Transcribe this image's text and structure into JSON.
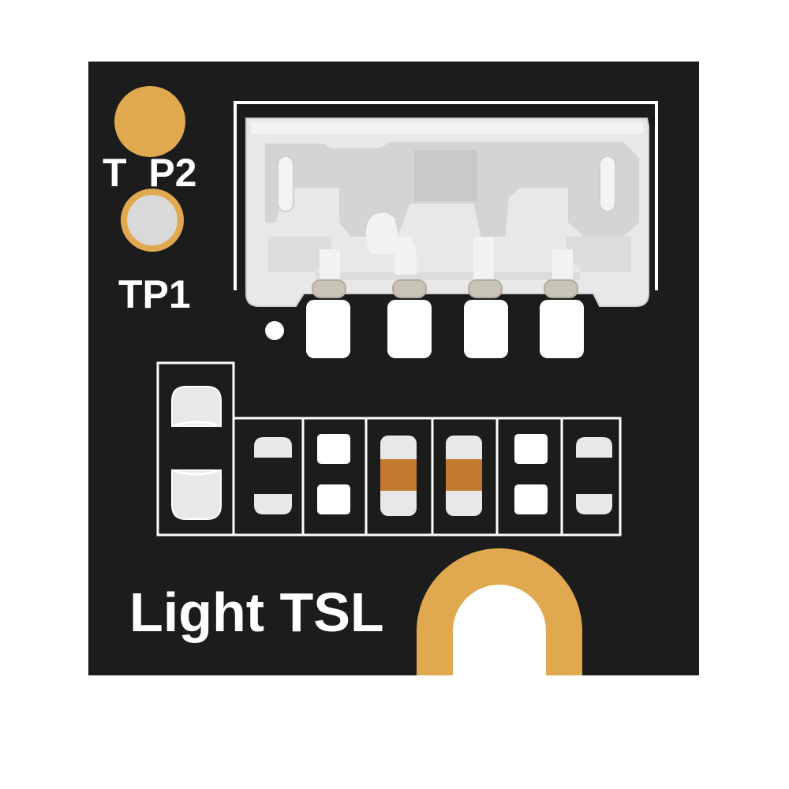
{
  "board": {
    "colors": {
      "board": "#1c1c1c",
      "silkscreen": "#ffffff",
      "gold_pad": "#e1a94f",
      "connector_body": "#e6e6e6",
      "connector_shade": "#cfcfcf",
      "pin_tip": "#c9c4b8",
      "smd_pad": "#e8e8e8",
      "capacitor": "#c27a2e"
    }
  },
  "labels": {
    "tp2": "T  P2",
    "tp1": "TP1",
    "title": "Light TSL"
  },
  "test_points": [
    {
      "name": "TP2",
      "style": "gold-filled"
    },
    {
      "name": "TP1",
      "style": "gold-ring"
    }
  ],
  "connector": {
    "pin_count": 4,
    "icon": "jst-connector"
  },
  "components": {
    "large_resistor": 1,
    "small_parts": 6,
    "capacitors": 2
  },
  "mounting_hole": {
    "style": "gold-u-slot"
  }
}
